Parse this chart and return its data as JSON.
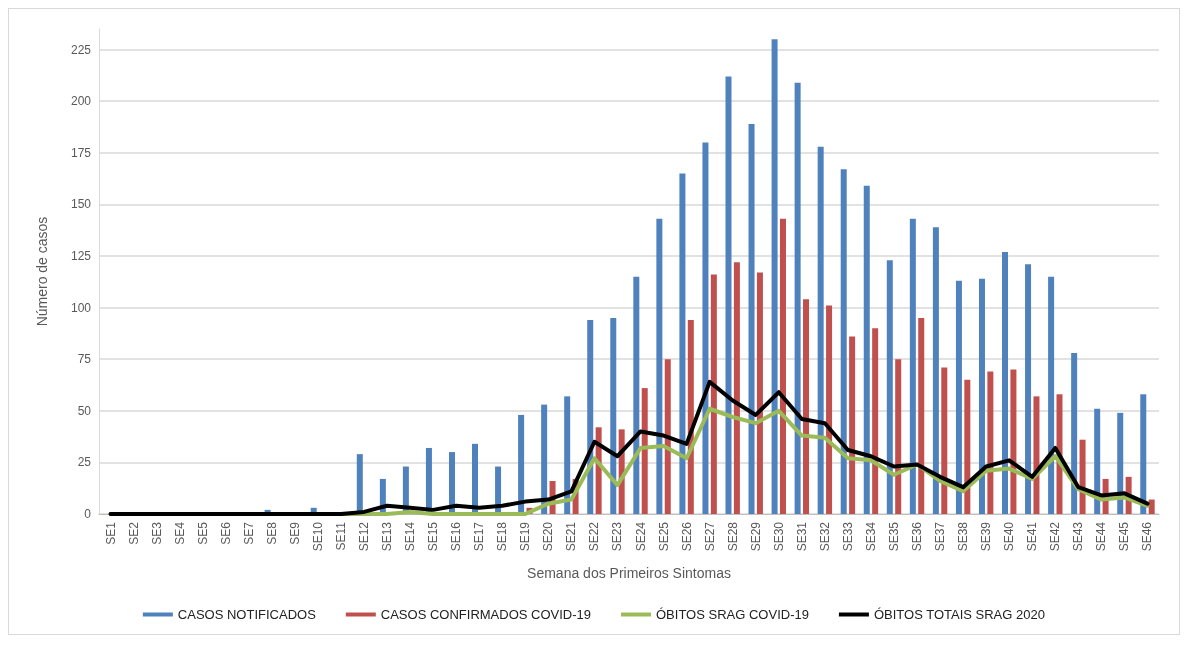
{
  "chart_data": {
    "type": "bar",
    "xlabel": "Semana dos Primeiros Sintomas",
    "ylabel": "Número de casos",
    "categories": [
      "SE1",
      "SE2",
      "SE3",
      "SE4",
      "SE5",
      "SE6",
      "SE7",
      "SE8",
      "SE9",
      "SE10",
      "SE11",
      "SE12",
      "SE13",
      "SE14",
      "SE15",
      "SE16",
      "SE17",
      "SE18",
      "SE19",
      "SE20",
      "SE21",
      "SE22",
      "SE23",
      "SE24",
      "SE25",
      "SE26",
      "SE27",
      "SE28",
      "SE29",
      "SE30",
      "SE31",
      "SE32",
      "SE33",
      "SE34",
      "SE35",
      "SE36",
      "SE37",
      "SE38",
      "SE39",
      "SE40",
      "SE41",
      "SE42",
      "SE43",
      "SE44",
      "SE45",
      "SE46"
    ],
    "series": [
      {
        "name": "CASOS NOTIFICADOS",
        "color": "#4f81bd",
        "values": [
          0,
          0,
          0,
          0,
          0,
          0,
          0,
          2,
          0,
          3,
          0,
          29,
          17,
          23,
          32,
          30,
          34,
          23,
          48,
          53,
          57,
          94,
          95,
          115,
          143,
          165,
          180,
          212,
          189,
          230,
          209,
          178,
          167,
          159,
          123,
          143,
          139,
          113,
          114,
          127,
          121,
          115,
          78,
          51,
          49,
          58
        ]
      },
      {
        "name": "CASOS CONFIRMADOS COVID-19",
        "color": "#c0504d",
        "values": [
          0,
          0,
          0,
          0,
          0,
          0,
          0,
          0,
          0,
          0,
          0,
          0,
          0,
          0,
          0,
          0,
          0,
          0,
          3,
          16,
          17,
          42,
          41,
          61,
          75,
          94,
          116,
          122,
          117,
          143,
          104,
          101,
          86,
          90,
          75,
          95,
          71,
          65,
          69,
          70,
          57,
          58,
          36,
          17,
          18,
          7
        ]
      },
      {
        "name": "ÓBITOS SRAG COVID-19",
        "color": "#9bbb59",
        "type": "line",
        "values": [
          0,
          0,
          0,
          0,
          0,
          0,
          0,
          0,
          0,
          0,
          0,
          0,
          0,
          1,
          0,
          0,
          0,
          0,
          0,
          5,
          7,
          27,
          14,
          32,
          33,
          27,
          51,
          47,
          44,
          50,
          38,
          37,
          27,
          26,
          19,
          24,
          16,
          11,
          21,
          22,
          17,
          28,
          12,
          7,
          8,
          4
        ]
      },
      {
        "name": "ÓBITOS TOTAIS SRAG 2020",
        "color": "#000000",
        "type": "line",
        "values": [
          0,
          0,
          0,
          0,
          0,
          0,
          0,
          0,
          0,
          0,
          0,
          1,
          4,
          3,
          2,
          4,
          3,
          4,
          6,
          7,
          11,
          35,
          28,
          40,
          38,
          34,
          64,
          55,
          48,
          59,
          46,
          44,
          31,
          28,
          23,
          24,
          18,
          13,
          23,
          26,
          18,
          32,
          13,
          9,
          10,
          5
        ]
      }
    ],
    "ylim": [
      0,
      235
    ],
    "yticks": [
      0,
      25,
      50,
      75,
      100,
      125,
      150,
      175,
      200,
      225
    ],
    "grid": "y",
    "legend": "bottom",
    "marker": "none",
    "line_style": "solid"
  }
}
